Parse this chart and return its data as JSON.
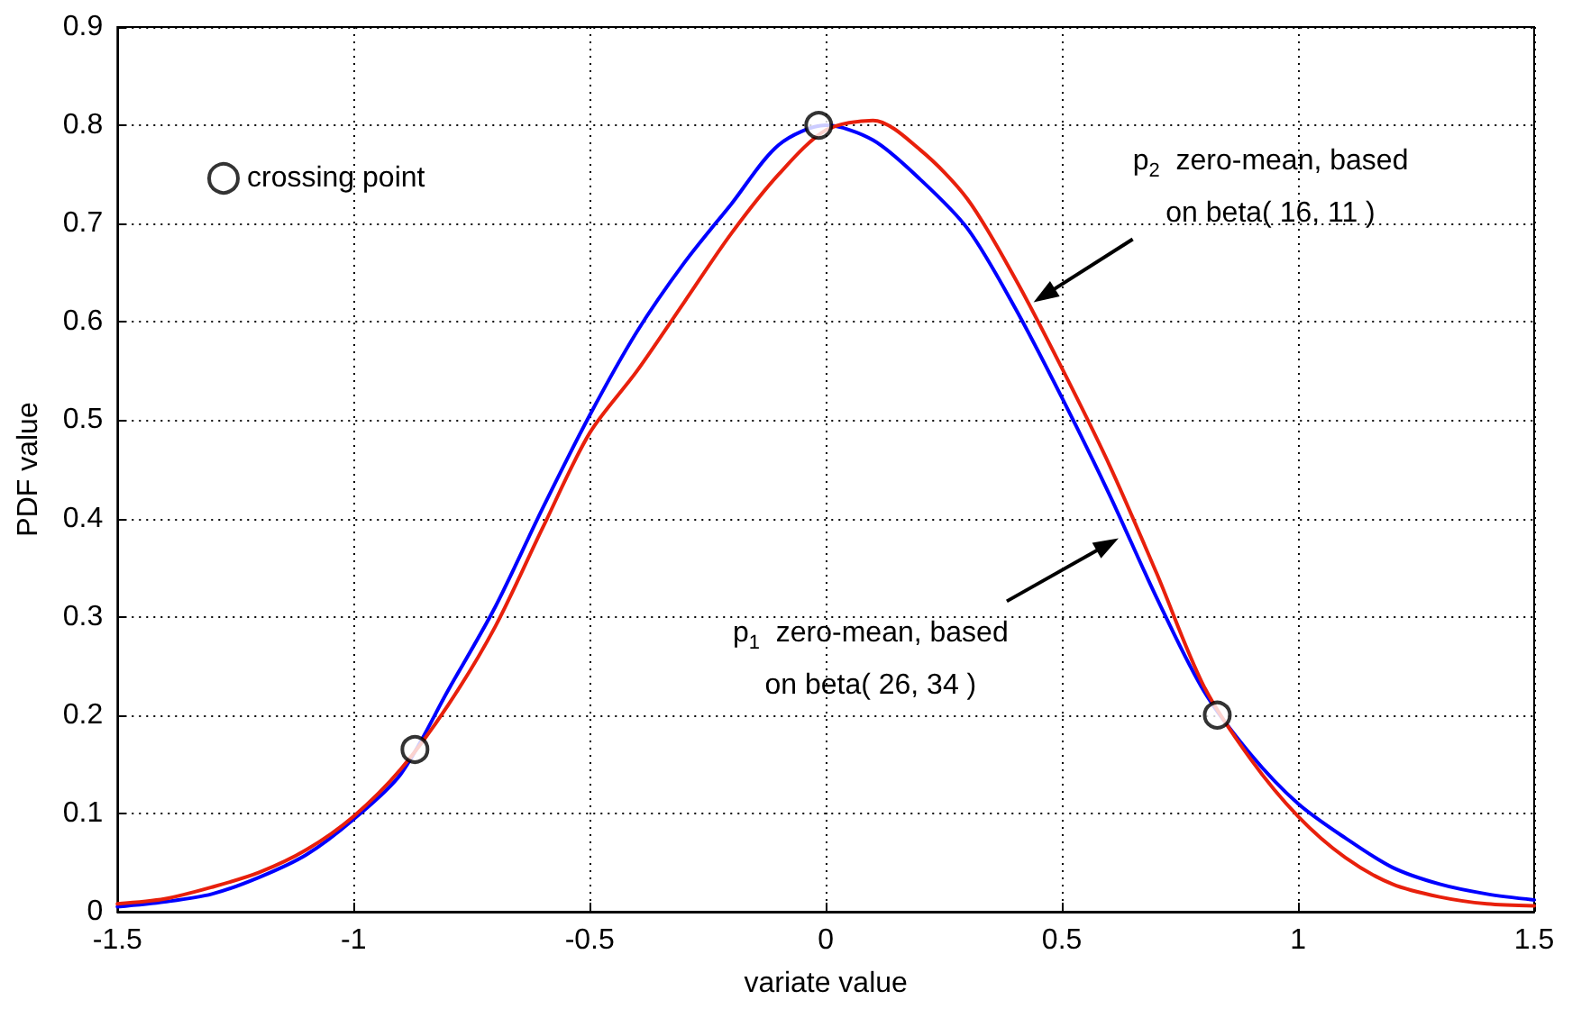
{
  "chart_data": {
    "type": "line",
    "xlabel": "variate value",
    "ylabel": "PDF value",
    "xlim": [
      -1.5,
      1.5
    ],
    "xticks": [
      -1.5,
      -1,
      -0.5,
      0,
      0.5,
      1,
      1.5
    ],
    "ylim": [
      0,
      0.9
    ],
    "yticks": [
      0,
      0.1,
      0.2,
      0.3,
      0.4,
      0.5,
      0.6,
      0.7,
      0.8,
      0.9
    ],
    "grid": true,
    "legend": "top left",
    "line_style": "solid",
    "series": [
      {
        "color": "#0000ff",
        "x": [
          -1.5,
          -1.4,
          -1.3,
          -1.2,
          -1.1,
          -1.0,
          -0.9,
          -0.8,
          -0.7,
          -0.6,
          -0.5,
          -0.4,
          -0.3,
          -0.2,
          -0.1,
          0,
          0.1,
          0.2,
          0.3,
          0.4,
          0.5,
          0.6,
          0.7,
          0.8,
          0.9,
          1.0,
          1.1,
          1.2,
          1.3,
          1.4,
          1.5
        ],
        "values": [
          0.005,
          0.01,
          0.018,
          0.035,
          0.058,
          0.094,
          0.14,
          0.225,
          0.31,
          0.41,
          0.505,
          0.59,
          0.66,
          0.72,
          0.78,
          0.8,
          0.785,
          0.745,
          0.695,
          0.615,
          0.523,
          0.425,
          0.32,
          0.225,
          0.16,
          0.11,
          0.075,
          0.045,
          0.028,
          0.018,
          0.012
        ]
      },
      {
        "color": "#e8200c",
        "x": [
          -1.5,
          -1.4,
          -1.3,
          -1.2,
          -1.1,
          -1.0,
          -0.9,
          -0.8,
          -0.7,
          -0.6,
          -0.5,
          -0.4,
          -0.3,
          -0.2,
          -0.1,
          0,
          0.1,
          0.2,
          0.3,
          0.4,
          0.5,
          0.6,
          0.7,
          0.8,
          0.9,
          1.0,
          1.1,
          1.2,
          1.3,
          1.4,
          1.5
        ],
        "values": [
          0.008,
          0.013,
          0.025,
          0.04,
          0.063,
          0.097,
          0.145,
          0.21,
          0.29,
          0.39,
          0.487,
          0.55,
          0.62,
          0.69,
          0.75,
          0.795,
          0.805,
          0.775,
          0.725,
          0.645,
          0.553,
          0.455,
          0.345,
          0.23,
          0.155,
          0.097,
          0.055,
          0.028,
          0.015,
          0.008,
          0.006
        ]
      },
      {
        "type": "scatter",
        "name": "crossing point",
        "color": "#000000",
        "marker": "circle",
        "x": [
          -0.87,
          -0.015,
          0.829
        ],
        "values": [
          0.165,
          0.8,
          0.2
        ]
      }
    ],
    "annotations": [
      {
        "text": "p$_{2}$  zero-mean, based\non beta( 16, 11 )",
        "x": 0.44,
        "y": 0.62
      },
      {
        "text": "p$_{1}$  zero-mean, based\non beta( 26, 34 )",
        "x": 0.62,
        "y": 0.38
      }
    ]
  }
}
